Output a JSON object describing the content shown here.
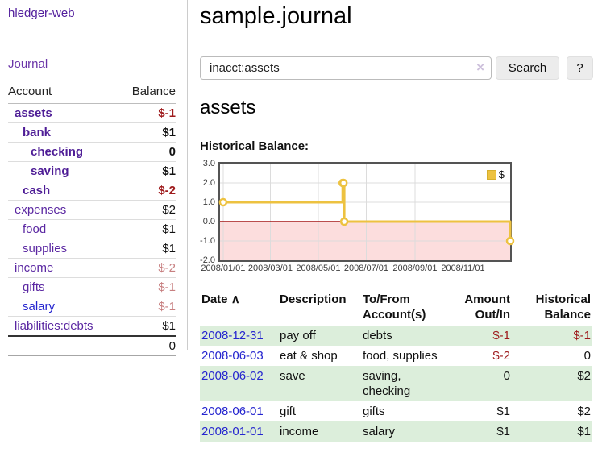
{
  "app": {
    "title": "hledger-web"
  },
  "sidebar": {
    "journal_label": "Journal",
    "accounts_table": {
      "header_account": "Account",
      "header_balance": "Balance",
      "rows": [
        {
          "name": "assets",
          "depth": 1,
          "bold": true,
          "balance": "$-1",
          "balance_style": "neg-strong"
        },
        {
          "name": "bank",
          "depth": 2,
          "bold": true,
          "balance": "$1",
          "balance_style": "pos"
        },
        {
          "name": "checking",
          "depth": 3,
          "bold": true,
          "balance": "0",
          "balance_style": "pos"
        },
        {
          "name": "saving",
          "depth": 3,
          "bold": true,
          "balance": "$1",
          "balance_style": "pos"
        },
        {
          "name": "cash",
          "depth": 2,
          "bold": true,
          "balance": "$-2",
          "balance_style": "neg-strong"
        },
        {
          "name": "expenses",
          "depth": 1,
          "bold": false,
          "balance": "$2",
          "balance_style": "pos"
        },
        {
          "name": "food",
          "depth": 2,
          "bold": false,
          "balance": "$1",
          "balance_style": "pos"
        },
        {
          "name": "supplies",
          "depth": 2,
          "bold": false,
          "balance": "$1",
          "balance_style": "pos"
        },
        {
          "name": "income",
          "depth": 1,
          "bold": false,
          "balance": "$-2",
          "balance_style": "neg-soft"
        },
        {
          "name": "gifts",
          "depth": 2,
          "bold": false,
          "balance": "$-1",
          "balance_style": "neg-soft"
        },
        {
          "name": "salary",
          "depth": 2,
          "bold": false,
          "link_style": "blue",
          "balance": "$-1",
          "balance_style": "neg-soft"
        },
        {
          "name": "liabilities:debts",
          "depth": 1,
          "bold": false,
          "balance": "$1",
          "balance_style": "pos"
        }
      ],
      "total": "0"
    }
  },
  "main": {
    "title": "sample.journal",
    "search": {
      "value": "inacct:assets",
      "clear_icon": "×",
      "search_button": "Search",
      "help_button": "?"
    },
    "account_heading": "assets",
    "chart_heading": "Historical Balance:"
  },
  "chart_data": {
    "type": "line",
    "steps": true,
    "title": "Historical Balance:",
    "series": [
      {
        "name": "$",
        "color": "#edc240",
        "points": [
          {
            "x": "2008-01-01",
            "y": 1
          },
          {
            "x": "2008-06-01",
            "y": 2
          },
          {
            "x": "2008-06-02",
            "y": 2
          },
          {
            "x": "2008-06-03",
            "y": 0
          },
          {
            "x": "2008-12-31",
            "y": -1
          }
        ]
      }
    ],
    "x_ticks": [
      "2008/01/01",
      "2008/03/01",
      "2008/05/01",
      "2008/07/01",
      "2008/09/01",
      "2008/11/01"
    ],
    "y_ticks": [
      3.0,
      2.0,
      1.0,
      0.0,
      -1.0,
      -2.0
    ],
    "y_tick_labels": [
      "3.0",
      "2.0",
      "1.0",
      "0.0",
      "-1.0",
      "-2.0"
    ],
    "xlim": [
      "2007-12-28",
      "2008-12-31"
    ],
    "ylim": [
      -2,
      3
    ],
    "grid": true,
    "legend_position": "top-right",
    "colors": {
      "line": "#edc240",
      "marker_fill": "#ffffff",
      "negative_region": "#fcdddd",
      "zero_line": "#a41212",
      "gridline": "#dcdcdc",
      "border": "#545454"
    }
  },
  "register": {
    "headers": {
      "date": "Date",
      "sort_icon": "∧",
      "description": "Description",
      "accounts_line1": "To/From",
      "accounts_line2": "Account(s)",
      "amount_line1": "Amount",
      "amount_line2": "Out/In",
      "balance_line1": "Historical",
      "balance_line2": "Balance"
    },
    "rows": [
      {
        "date": "2008-12-31",
        "description": "pay off",
        "accounts_lines": [
          "debts"
        ],
        "amount": "$-1",
        "amount_neg": true,
        "balance": "$-1",
        "balance_neg": true,
        "green": true
      },
      {
        "date": "2008-06-03",
        "description": "eat & shop",
        "accounts_lines": [
          "food, supplies"
        ],
        "amount": "$-2",
        "amount_neg": true,
        "balance": "0",
        "balance_neg": false,
        "green": false
      },
      {
        "date": "2008-06-02",
        "description": "save",
        "accounts_lines": [
          "saving,",
          "checking"
        ],
        "amount": "0",
        "amount_neg": false,
        "balance": "$2",
        "balance_neg": false,
        "green": true
      },
      {
        "date": "2008-06-01",
        "description": "gift",
        "accounts_lines": [
          "gifts"
        ],
        "amount": "$1",
        "amount_neg": false,
        "balance": "$2",
        "balance_neg": false,
        "green": false
      },
      {
        "date": "2008-01-01",
        "description": "income",
        "accounts_lines": [
          "salary"
        ],
        "amount": "$1",
        "amount_neg": false,
        "balance": "$1",
        "balance_neg": false,
        "green": true
      }
    ]
  },
  "colors": {
    "link_purple": "#5b28a2",
    "link_blue": "#2525cf",
    "negative_strong": "#9e1a1c",
    "negative_soft": "#c77f80",
    "row_green": "#dceedb",
    "button_bg": "#ececec"
  }
}
